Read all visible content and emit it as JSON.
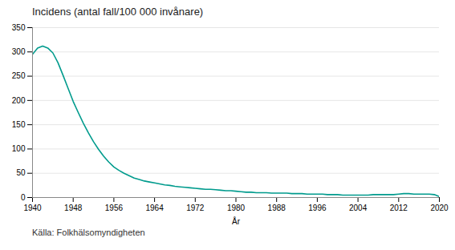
{
  "chart_data": {
    "type": "line",
    "title": "Incidens (antal fall/100 000 invånare)",
    "xlabel": "År",
    "source": "Källa: Folkhälsomyndigheten",
    "color": "#009B8D",
    "grid": true,
    "xlim": [
      1940,
      2020
    ],
    "xticks": [
      1940,
      1948,
      1956,
      1964,
      1972,
      1980,
      1988,
      1996,
      2004,
      2012,
      2020
    ],
    "ylim": [
      0,
      350
    ],
    "yticks": [
      0,
      50,
      100,
      150,
      200,
      250,
      300,
      350
    ],
    "x": [
      1940,
      1941,
      1942,
      1943,
      1944,
      1945,
      1946,
      1947,
      1948,
      1949,
      1950,
      1951,
      1952,
      1953,
      1954,
      1955,
      1956,
      1957,
      1958,
      1959,
      1960,
      1961,
      1962,
      1963,
      1964,
      1965,
      1966,
      1967,
      1968,
      1969,
      1970,
      1971,
      1972,
      1973,
      1974,
      1975,
      1976,
      1977,
      1978,
      1979,
      1980,
      1981,
      1982,
      1983,
      1984,
      1985,
      1986,
      1987,
      1988,
      1989,
      1990,
      1991,
      1992,
      1993,
      1994,
      1995,
      1996,
      1997,
      1998,
      1999,
      2000,
      2001,
      2002,
      2003,
      2004,
      2005,
      2006,
      2007,
      2008,
      2009,
      2010,
      2011,
      2012,
      2013,
      2014,
      2015,
      2016,
      2017,
      2018,
      2019,
      2020
    ],
    "values": [
      295,
      308,
      312,
      308,
      298,
      278,
      252,
      225,
      198,
      175,
      153,
      133,
      115,
      99,
      85,
      73,
      63,
      56,
      50,
      45,
      40,
      37,
      34,
      32,
      30,
      28,
      26,
      25,
      23,
      22,
      21,
      20,
      19,
      18,
      17,
      17,
      16,
      15,
      14,
      14,
      13,
      12,
      11,
      11,
      10,
      10,
      10,
      9,
      9,
      9,
      9,
      8,
      8,
      8,
      7,
      7,
      7,
      7,
      6,
      6,
      6,
      5,
      5,
      5,
      5,
      5,
      5,
      6,
      6,
      6,
      6,
      6,
      7,
      8,
      8,
      7,
      7,
      7,
      7,
      6,
      2
    ]
  }
}
